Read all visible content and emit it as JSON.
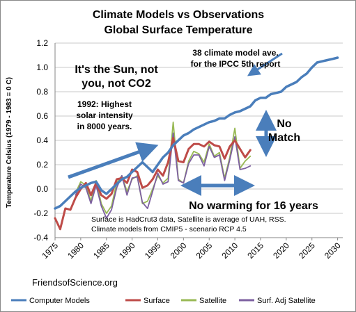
{
  "chart_data": {
    "type": "line",
    "title": "Climate Models vs Observations",
    "subtitle": "Global Surface Temperature",
    "ylabel": "Temperature Celsius (1979 - 1983 = 0 C)",
    "xlabel": "",
    "xlim": [
      1975,
      2031
    ],
    "ylim": [
      -0.4,
      1.2
    ],
    "yticks": [
      "-0.4",
      "-0.2",
      "0.0",
      "0.2",
      "0.4",
      "0.6",
      "0.8",
      "1.0",
      "1.2"
    ],
    "xticks": [
      "1975",
      "1980",
      "1985",
      "1990",
      "1995",
      "2000",
      "2005",
      "2010",
      "2015",
      "2020",
      "2025",
      "2030"
    ],
    "grid": "horizontal",
    "legend_position": "bottom",
    "series": [
      {
        "name": "Computer Models",
        "color": "#4a7ebb",
        "x": [
          1975,
          1976,
          1977,
          1978,
          1979,
          1980,
          1981,
          1982,
          1983,
          1984,
          1985,
          1986,
          1987,
          1988,
          1989,
          1990,
          1991,
          1992,
          1993,
          1994,
          1995,
          1996,
          1997,
          1998,
          1999,
          2000,
          2001,
          2002,
          2003,
          2004,
          2005,
          2006,
          2007,
          2008,
          2009,
          2010,
          2011,
          2012,
          2013,
          2014,
          2015,
          2016,
          2017,
          2018,
          2019,
          2020,
          2021,
          2022,
          2023,
          2024,
          2025,
          2026,
          2027,
          2028,
          2029,
          2030
        ],
        "values": [
          -0.16,
          -0.14,
          -0.1,
          -0.06,
          -0.02,
          0.01,
          0.03,
          0.05,
          0.06,
          -0.01,
          -0.04,
          0.0,
          0.04,
          0.08,
          0.1,
          0.14,
          0.18,
          0.22,
          0.18,
          0.14,
          0.2,
          0.26,
          0.3,
          0.36,
          0.4,
          0.44,
          0.46,
          0.49,
          0.51,
          0.53,
          0.55,
          0.56,
          0.58,
          0.58,
          0.61,
          0.63,
          0.64,
          0.66,
          0.68,
          0.73,
          0.75,
          0.75,
          0.78,
          0.79,
          0.8,
          0.84,
          0.86,
          0.88,
          0.92,
          0.95,
          1.0,
          1.04,
          1.05,
          1.06,
          1.07,
          1.08
        ]
      },
      {
        "name": "Surface",
        "color": "#be4b48",
        "x": [
          1975,
          1976,
          1977,
          1978,
          1979,
          1980,
          1981,
          1982,
          1983,
          1984,
          1985,
          1986,
          1987,
          1988,
          1989,
          1990,
          1991,
          1992,
          1993,
          1994,
          1995,
          1996,
          1997,
          1998,
          1999,
          2000,
          2001,
          2002,
          2003,
          2004,
          2005,
          2006,
          2007,
          2008,
          2009,
          2010,
          2011,
          2012,
          2013
        ],
        "values": [
          -0.24,
          -0.33,
          -0.16,
          -0.17,
          -0.07,
          0.0,
          0.05,
          -0.05,
          0.05,
          -0.05,
          -0.08,
          -0.04,
          0.08,
          0.09,
          0.05,
          0.16,
          0.14,
          0.01,
          0.03,
          0.08,
          0.16,
          0.11,
          0.22,
          0.42,
          0.23,
          0.22,
          0.33,
          0.37,
          0.37,
          0.35,
          0.39,
          0.36,
          0.35,
          0.25,
          0.35,
          0.4,
          0.33,
          0.26,
          0.32
        ]
      },
      {
        "name": "Satellite",
        "color": "#98b954",
        "x": [
          1979,
          1980,
          1981,
          1982,
          1983,
          1984,
          1985,
          1986,
          1987,
          1988,
          1989,
          1990,
          1991,
          1992,
          1993,
          1994,
          1995,
          1996,
          1997,
          1998,
          1999,
          2000,
          2001,
          2002,
          2003,
          2004,
          2005,
          2006,
          2007,
          2008,
          2009,
          2010,
          2011,
          2012,
          2013
        ],
        "values": [
          -0.03,
          0.06,
          0.03,
          -0.1,
          0.07,
          -0.12,
          -0.2,
          -0.14,
          0.05,
          0.11,
          -0.02,
          0.08,
          0.11,
          -0.12,
          -0.1,
          0.0,
          0.11,
          0.05,
          0.09,
          0.55,
          0.08,
          0.05,
          0.23,
          0.31,
          0.29,
          0.22,
          0.37,
          0.27,
          0.3,
          0.09,
          0.26,
          0.5,
          0.17,
          0.23,
          0.27
        ]
      },
      {
        "name": "Surf. Adj Satellite",
        "color": "#7d60a0",
        "x": [
          1979,
          1980,
          1981,
          1982,
          1983,
          1984,
          1985,
          1986,
          1987,
          1988,
          1989,
          1990,
          1991,
          1992,
          1993,
          1994,
          1995,
          1996,
          1997,
          1998,
          1999,
          2000,
          2001,
          2002,
          2003,
          2004,
          2005,
          2006,
          2007,
          2008,
          2009,
          2010,
          2011,
          2012,
          2013
        ],
        "values": [
          -0.05,
          0.04,
          0.01,
          -0.12,
          0.03,
          -0.14,
          -0.24,
          -0.17,
          0.01,
          0.11,
          -0.05,
          0.09,
          0.1,
          -0.11,
          -0.16,
          -0.02,
          0.13,
          0.04,
          0.06,
          0.46,
          0.07,
          0.05,
          0.21,
          0.28,
          0.28,
          0.19,
          0.35,
          0.26,
          0.28,
          0.07,
          0.24,
          0.43,
          0.16,
          0.17,
          0.19
        ]
      }
    ],
    "annotations": [
      {
        "id": "sun",
        "lines": [
          "It's the Sun, not",
          "you, not CO2"
        ]
      },
      {
        "id": "solar",
        "lines": [
          "1992: Highest",
          "solar intensity",
          "in 8000 years."
        ]
      },
      {
        "id": "model-ave",
        "lines": [
          "38 climate model ave.",
          "for the IPCC 5th report"
        ]
      },
      {
        "id": "no-match",
        "lines": [
          "No",
          "Match"
        ]
      },
      {
        "id": "no-warming",
        "lines": [
          "No warming for 16 years"
        ]
      },
      {
        "id": "sources",
        "lines": [
          "Surface is HadCrut3 data, Satellite is average of UAH, RSS.",
          "Climate models from CMIP5 - scenario RCP 4.5"
        ]
      }
    ],
    "footer": "FriendsofScience.org",
    "colors": {
      "arrow": "#4a7ebb",
      "grid": "#c8c8c8",
      "axis": "#868686"
    }
  }
}
